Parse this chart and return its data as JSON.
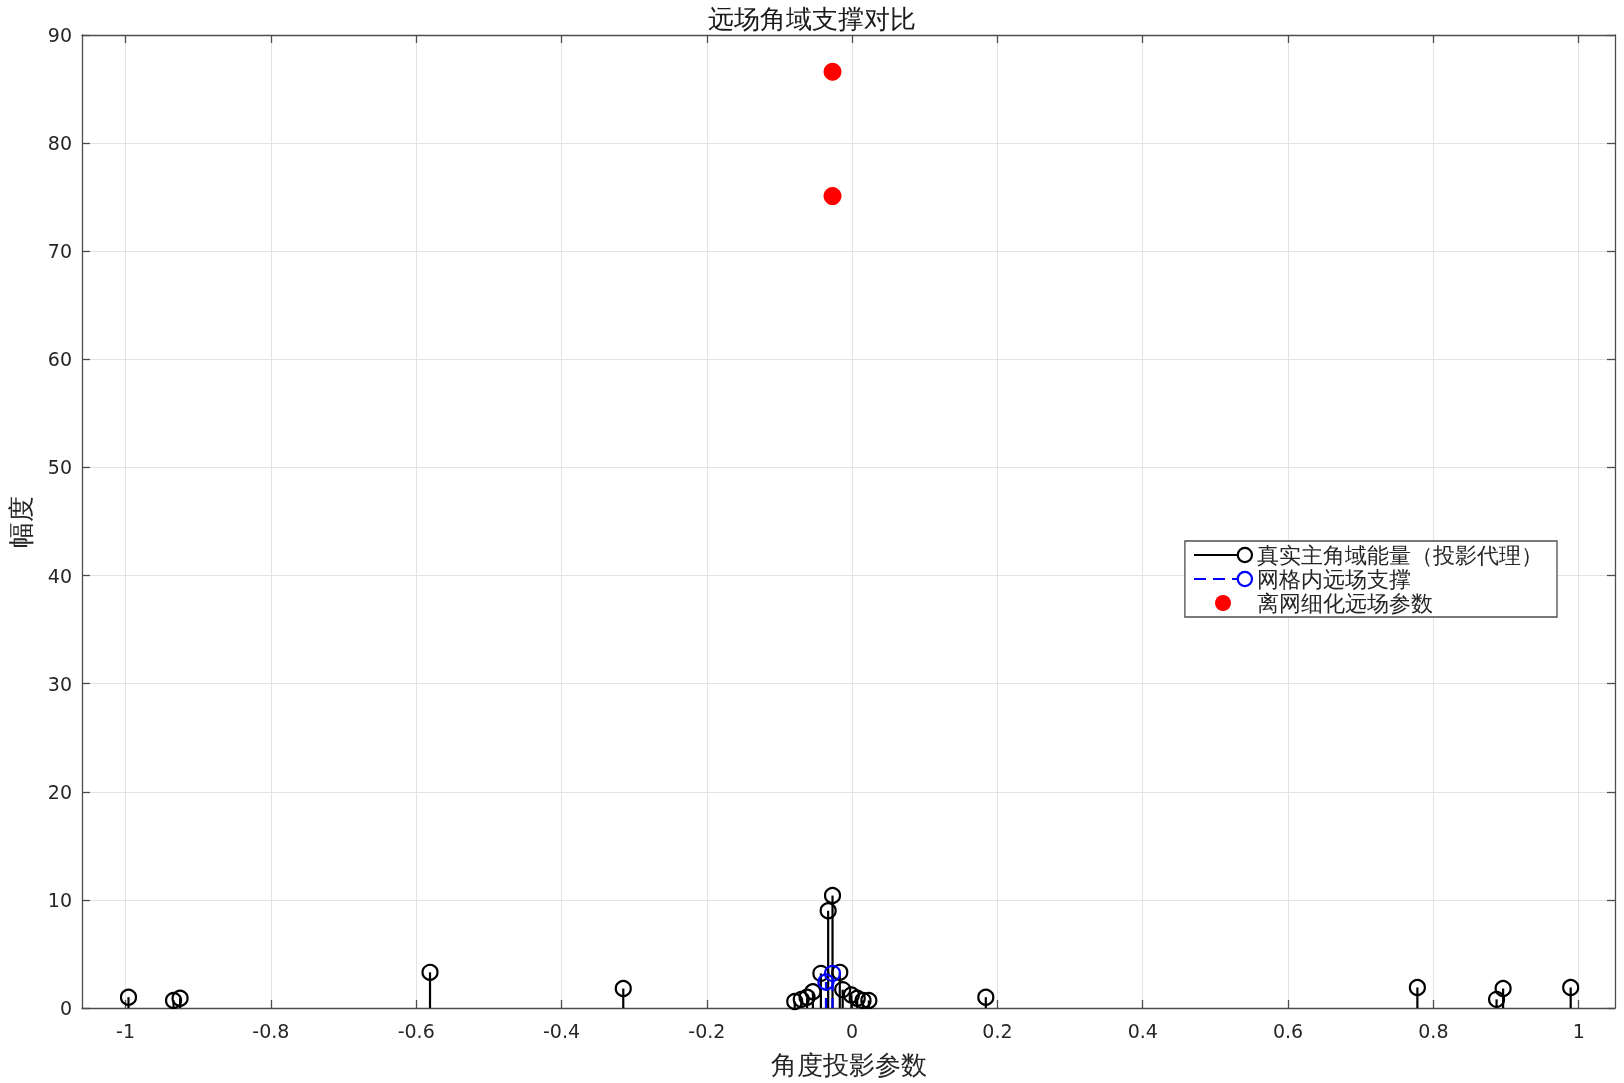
{
  "chart_data": {
    "type": "lollipop",
    "title": "远场角域支撑对比",
    "xlabel": "角度投影参数",
    "ylabel": "幅度",
    "xlim": [
      -1.06,
      1.05
    ],
    "xticks": [
      -1,
      -0.8,
      -0.6,
      -0.4,
      -0.2,
      0,
      0.2,
      0.4,
      0.6,
      0.8,
      1
    ],
    "ylim": [
      0,
      90
    ],
    "yticks": [
      0,
      10,
      20,
      30,
      40,
      50,
      60,
      70,
      80,
      90
    ],
    "grid": true,
    "legend": "right",
    "marker": "circle",
    "series": [
      {
        "name": "真实主角域能量（投影代理）",
        "color": "#000000",
        "line_style": "solid",
        "x": [
          -0.996,
          -0.934,
          -0.925,
          -0.581,
          -0.315,
          -0.079,
          -0.07,
          -0.062,
          -0.054,
          -0.043,
          -0.033,
          -0.027,
          -0.017,
          -0.013,
          -0.001,
          0.007,
          0.015,
          0.023,
          0.184,
          0.778,
          0.887,
          0.896,
          0.989
        ],
        "values": [
          1.0,
          0.7,
          0.9,
          3.3,
          1.8,
          0.6,
          0.8,
          1.0,
          1.5,
          3.2,
          9.0,
          10.4,
          3.3,
          1.7,
          1.2,
          0.9,
          0.7,
          0.7,
          1.0,
          1.9,
          0.8,
          1.8,
          1.9
        ]
      },
      {
        "name": "网格内远场支撑",
        "color": "#0000ff",
        "line_style": "dashed",
        "x": [
          -0.036,
          -0.027
        ],
        "values": [
          2.4,
          3.2
        ]
      },
      {
        "name": "离网细化远场参数",
        "type": "scatter",
        "color": "#ff0000",
        "x": [
          -0.027,
          -0.027
        ],
        "values": [
          86.6,
          75.1
        ]
      }
    ]
  }
}
